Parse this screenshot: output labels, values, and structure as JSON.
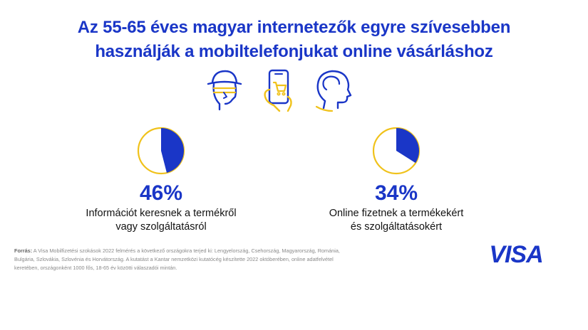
{
  "title": {
    "line1": "Az 55-65 éves magyar internetezők egyre szívesebben",
    "line2": "használják a mobiltelefonjukat online vásárláshoz"
  },
  "icons": [
    "person-hat-icon",
    "phone-cart-icon",
    "head-profile-icon"
  ],
  "colors": {
    "blue": "#1a36c7",
    "yellow": "#f0c21b"
  },
  "chart_data": [
    {
      "type": "pie",
      "values": [
        46,
        54
      ],
      "value_label": "46%",
      "caption_line1": "Információt keresnek a termékről",
      "caption_line2": "vagy szolgáltatásról"
    },
    {
      "type": "pie",
      "values": [
        34,
        66
      ],
      "value_label": "34%",
      "caption_line1": "Online fizetnek a termékekért",
      "caption_line2": "és szolgáltatásokért"
    }
  ],
  "source": {
    "label": "Forrás:",
    "line1": "A Visa Mobilfizetési szokások 2022 felmérés a következő országokra terjed ki: Lengyelország, Csehország, Magyarország, Románia,",
    "line2": "Bulgária, Szlovákia, Szlovénia és Horvátország. A kutatást a Kantar nemzetközi kutatócég készítette 2022 októberében, online adatfelvétel",
    "line3": "keretében, országonként 1000 fős, 18-65 év közötti válaszadói mintán."
  },
  "logo": {
    "text": "VISA"
  }
}
